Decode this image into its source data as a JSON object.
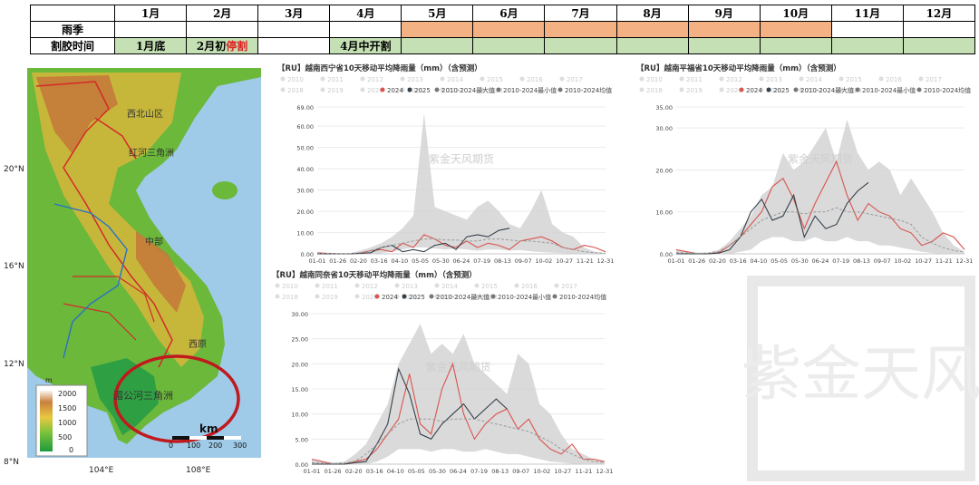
{
  "season_table": {
    "months": [
      "1月",
      "2月",
      "3月",
      "4月",
      "5月",
      "6月",
      "7月",
      "8月",
      "9月",
      "10月",
      "11月",
      "12月"
    ],
    "rows": [
      {
        "label": "雨季",
        "cells": [
          "",
          "",
          "",
          "",
          "",
          "",
          "",
          "",
          "",
          "",
          "",
          ""
        ],
        "colors": [
          "",
          "",
          "",
          "",
          "#f4b183",
          "#f4b183",
          "#f4b183",
          "#f4b183",
          "#f4b183",
          "#f4b183",
          "",
          ""
        ]
      },
      {
        "label": "割胶时间",
        "cells": [
          "1月底",
          "2月初",
          "",
          "4月中开割",
          "",
          "",
          "",
          "",
          "",
          "",
          "",
          ""
        ],
        "cell1_highlight": "停割",
        "colors": [
          "#c5e0b4",
          "#c5e0b4",
          "",
          "#c5e0b4",
          "#c5e0b4",
          "#c5e0b4",
          "#c5e0b4",
          "#c5e0b4",
          "#c5e0b4",
          "#c5e0b4",
          "#c5e0b4",
          "#c5e0b4"
        ]
      }
    ]
  },
  "map": {
    "lat_labels": [
      "20°N",
      "16°N",
      "12°N",
      "8°N"
    ],
    "lon_labels": [
      "104°E",
      "108°E"
    ],
    "legend_unit": "m",
    "legend_values": [
      "2000",
      "1500",
      "1000",
      "500",
      "0"
    ],
    "scale_label": "km",
    "scale_values": [
      "0",
      "100",
      "200",
      "300"
    ],
    "places": [
      "西北山区",
      "红河三角洲",
      "中部",
      "西原",
      "湄公河三角洲"
    ]
  },
  "chart_data": [
    {
      "type": "area",
      "title": "【RU】越南西宁省10天移动平均降雨量（mm）（含预测）",
      "legend_faded": [
        "2010",
        "2011",
        "2012",
        "2013",
        "2014",
        "2015",
        "2016",
        "2017",
        "2018",
        "2019",
        "2020",
        "2021",
        "2022",
        "2023"
      ],
      "legend": [
        {
          "name": "2024",
          "color": "#d9534f"
        },
        {
          "name": "2025",
          "color": "#34404a"
        },
        {
          "name": "2010-2024最大值",
          "color": "#777777"
        },
        {
          "name": "2010-2024最小值",
          "color": "#777777"
        },
        {
          "name": "2010-2024均值",
          "color": "#777777"
        }
      ],
      "x_ticks": [
        "01-01",
        "01-26",
        "02-20",
        "03-16",
        "04-10",
        "05-05",
        "05-30",
        "06-24",
        "07-19",
        "08-13",
        "09-07",
        "10-02",
        "10-27",
        "11-21",
        "12-31"
      ],
      "y_ticks": [
        "0.00",
        "10.00",
        "20.00",
        "30.00",
        "40.00",
        "50.00",
        "60.00",
        "69.00"
      ],
      "ylim": [
        0,
        69
      ],
      "band_max": [
        0.2,
        0.5,
        0.3,
        0.2,
        1.5,
        3,
        5,
        8,
        12,
        18,
        66,
        22,
        20,
        18,
        16,
        22,
        25,
        20,
        14,
        12,
        20,
        30,
        14,
        10,
        8,
        3,
        1,
        0.3
      ],
      "band_min": [
        0,
        0,
        0,
        0,
        0,
        0,
        0.3,
        1,
        2,
        3,
        3,
        2.5,
        2,
        2.5,
        2,
        1.5,
        2,
        2,
        1.5,
        1.8,
        1.2,
        0.8,
        0.5,
        0.3,
        0.1,
        0,
        0,
        0
      ],
      "series": [
        {
          "name": "2024",
          "values": [
            0.5,
            0.2,
            0,
            0,
            0.3,
            1.5,
            2,
            1,
            5,
            3,
            9,
            7,
            4,
            3,
            6,
            3,
            5,
            4,
            2,
            6,
            7,
            8,
            6,
            3,
            2,
            4,
            3,
            1
          ]
        },
        {
          "name": "2025",
          "values": [
            0,
            0,
            0,
            0,
            0.2,
            0.5,
            3,
            4,
            1,
            2,
            1,
            4,
            5,
            2,
            8,
            9,
            8,
            11,
            12,
            null,
            null,
            null,
            null,
            null,
            null,
            null,
            null,
            null
          ]
        },
        {
          "name": "2010-2024均值",
          "values": [
            0.3,
            0.2,
            0.1,
            0.1,
            0.5,
            1.5,
            3,
            4,
            5,
            6,
            7,
            7,
            6.5,
            6.5,
            6,
            6,
            7,
            7,
            6.5,
            6,
            6,
            5.5,
            5,
            3,
            2,
            1,
            0.5,
            0.3
          ]
        }
      ],
      "watermark": "紫金天风期货"
    },
    {
      "type": "area",
      "title": "【RU】越南平福省10天移动平均降雨量（mm）（含预测）",
      "legend_faded": [
        "2010",
        "2011",
        "2012",
        "2013",
        "2014",
        "2015",
        "2016",
        "2017",
        "2018",
        "2019",
        "2020",
        "2021",
        "2022",
        "2023"
      ],
      "legend": [
        {
          "name": "2024",
          "color": "#d9534f"
        },
        {
          "name": "2025",
          "color": "#34404a"
        },
        {
          "name": "2010-2024最大值",
          "color": "#777777"
        },
        {
          "name": "2010-2024最小值",
          "color": "#777777"
        },
        {
          "name": "2010-2024均值",
          "color": "#777777"
        }
      ],
      "x_ticks": [
        "01-01",
        "01-26",
        "02-20",
        "03-16",
        "04-10",
        "05-05",
        "05-30",
        "06-24",
        "07-19",
        "08-13",
        "09-07",
        "10-02",
        "10-27",
        "11-21",
        "12-31"
      ],
      "y_ticks": [
        "0.00",
        "10.00",
        "20.00",
        "30.00",
        "35.00"
      ],
      "ylim": [
        0,
        35
      ],
      "band_max": [
        1,
        0.5,
        0.3,
        0.3,
        1,
        3,
        6,
        9,
        14,
        16,
        24,
        20,
        22,
        26,
        30,
        22,
        32,
        24,
        20,
        22,
        20,
        14,
        18,
        14,
        10,
        5,
        2,
        0.5
      ],
      "band_min": [
        0,
        0,
        0,
        0,
        0,
        0,
        0.5,
        1,
        3,
        4,
        4,
        3,
        3,
        4,
        3,
        3,
        4,
        3,
        3,
        2,
        2,
        1.5,
        1,
        0.5,
        0.2,
        0,
        0,
        0
      ],
      "series": [
        {
          "name": "2024",
          "values": [
            1,
            0.5,
            0,
            0,
            0.3,
            2,
            4,
            7,
            10,
            16,
            18,
            13,
            6,
            12,
            17,
            22,
            14,
            8,
            12,
            10,
            9,
            6,
            5,
            2,
            3,
            5,
            4,
            1
          ]
        },
        {
          "name": "2025",
          "values": [
            0,
            0,
            0,
            0,
            0.2,
            1,
            4,
            10,
            13,
            8,
            9,
            14,
            4,
            9,
            6,
            7,
            12,
            15,
            17,
            null,
            null,
            null,
            null,
            null,
            null,
            null,
            null,
            null
          ]
        },
        {
          "name": "2010-2024均值",
          "values": [
            0.3,
            0.2,
            0.1,
            0.2,
            0.6,
            2,
            4,
            6,
            8,
            9,
            10,
            10,
            9.5,
            10,
            10,
            11,
            10,
            10,
            9.5,
            9,
            8.5,
            8,
            7,
            4,
            2.5,
            1.5,
            0.8,
            0.4
          ]
        }
      ],
      "watermark": "紫金天风期货"
    },
    {
      "type": "area",
      "title": "【RU】越南同奈省10天移动平均降雨量（mm）（含预测）",
      "legend_faded": [
        "2010",
        "2011",
        "2012",
        "2013",
        "2014",
        "2015",
        "2016",
        "2017",
        "2018",
        "2019",
        "2020",
        "2021",
        "2022",
        "2023"
      ],
      "legend": [
        {
          "name": "2024",
          "color": "#d9534f"
        },
        {
          "name": "2025",
          "color": "#34404a"
        },
        {
          "name": "2010-2024最大值",
          "color": "#777777"
        },
        {
          "name": "2010-2024最小值",
          "color": "#777777"
        },
        {
          "name": "2010-2024均值",
          "color": "#777777"
        }
      ],
      "x_ticks": [
        "01-01",
        "01-26",
        "02-20",
        "03-16",
        "04-10",
        "05-05",
        "05-30",
        "06-24",
        "07-19",
        "08-13",
        "09-07",
        "10-02",
        "10-27",
        "11-21",
        "12-31"
      ],
      "y_ticks": [
        "0.00",
        "5.00",
        "10.00",
        "15.00",
        "20.00",
        "25.00",
        "30.00"
      ],
      "ylim": [
        0,
        30
      ],
      "band_max": [
        1,
        0.5,
        0.3,
        0.5,
        2,
        4,
        8,
        12,
        20,
        24,
        28,
        22,
        24,
        22,
        26,
        20,
        18,
        16,
        14,
        22,
        20,
        12,
        10,
        6,
        3,
        2,
        1,
        0.5
      ],
      "band_min": [
        0,
        0,
        0,
        0,
        0,
        0,
        0.5,
        1.5,
        3,
        3,
        3,
        2.5,
        3,
        3,
        2.5,
        2.5,
        3,
        2.5,
        2,
        2,
        1.5,
        1,
        0.5,
        0.3,
        0.1,
        0,
        0,
        0
      ],
      "series": [
        {
          "name": "2024",
          "values": [
            1,
            0.5,
            0,
            0,
            0.5,
            1,
            3,
            6,
            9,
            18,
            8,
            6,
            15,
            20,
            10,
            5,
            8,
            10,
            11,
            7,
            9,
            5,
            3,
            2,
            4,
            1,
            1,
            0.5
          ]
        },
        {
          "name": "2025",
          "values": [
            0,
            0,
            0,
            0,
            0.3,
            0.5,
            4,
            8,
            19,
            14,
            6,
            5,
            8,
            10,
            12,
            9,
            11,
            13,
            11,
            null,
            null,
            null,
            null,
            null,
            null,
            null,
            null,
            null
          ]
        },
        {
          "name": "2010-2024均值",
          "values": [
            0.3,
            0.2,
            0.1,
            0.2,
            0.6,
            2,
            4,
            6,
            8,
            9,
            9,
            9,
            8.5,
            9,
            9,
            9,
            8.5,
            8,
            7.5,
            7,
            6.5,
            5.5,
            4.5,
            3,
            2,
            1,
            0.5,
            0.3
          ]
        }
      ],
      "watermark": "紫金天风期货"
    }
  ],
  "watermark_big": "紫金天风"
}
